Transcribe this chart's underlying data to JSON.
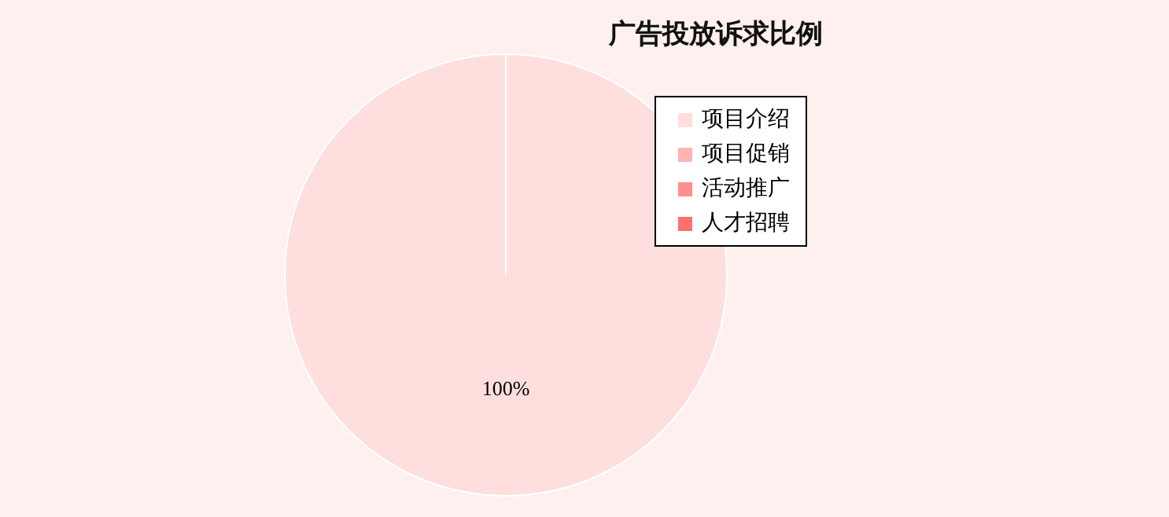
{
  "chart_data": {
    "type": "pie",
    "title": "广告投放诉求比例",
    "categories": [
      "项目介绍",
      "项目促销",
      "活动推广",
      "人才招聘"
    ],
    "values": [
      100,
      0,
      0,
      0
    ],
    "colors": [
      "#ffdede",
      "#ffb3b3",
      "#ff8f8f",
      "#ff7070"
    ],
    "value_labels": [
      "100%",
      null,
      null,
      null
    ],
    "legend": "right"
  }
}
